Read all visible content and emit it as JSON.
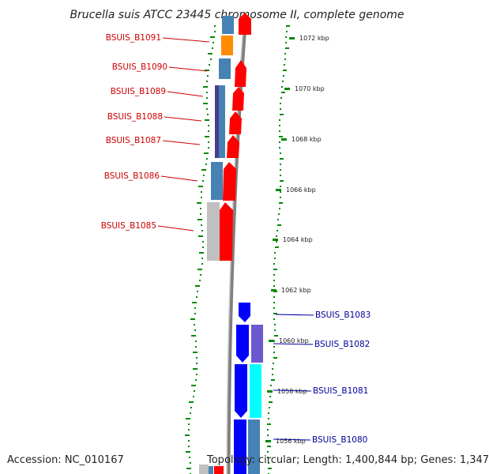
{
  "title": "Brucella suis ATCC 23445 chromosome II, complete genome",
  "accession_text": "Accession: NC_010167",
  "topology_text": "Topology: circular; Length: 1,400,844 bp; Genes: 1,347",
  "colors": {
    "forward_cds": "#ff0000",
    "reverse_cds": "#0000ff",
    "backbone": "#808080",
    "gc_skew_marks": "#008800",
    "left_label": "#cc0000",
    "right_label": "#000099",
    "steelblue": "#4682b4",
    "orange": "#ff8c00",
    "darkslateblue": "#483d8b",
    "gray": "#c0c0c0",
    "slateblue": "#6a5acd",
    "cyan": "#00ffff"
  },
  "kbp_markers": [
    {
      "label": "1072 kbp"
    },
    {
      "label": "1070 kbp"
    },
    {
      "label": "1068 kbp"
    },
    {
      "label": "1066 kbp"
    },
    {
      "label": "1064 kbp"
    },
    {
      "label": "1062 kbp"
    },
    {
      "label": "1060 kbp"
    },
    {
      "label": "1058 kbp"
    },
    {
      "label": "1056 kbp"
    }
  ],
  "left_gene_labels": [
    "BSUIS_B1091",
    "BSUIS_B1090",
    "BSUIS_B1089",
    "BSUIS_B1088",
    "BSUIS_B1087",
    "BSUIS_B1086",
    "BSUIS_B1085"
  ],
  "right_gene_labels": [
    "BSUIS_B1083",
    "BSUIS_B1082",
    "BSUIS_B1081",
    "BSUIS_B1080"
  ]
}
